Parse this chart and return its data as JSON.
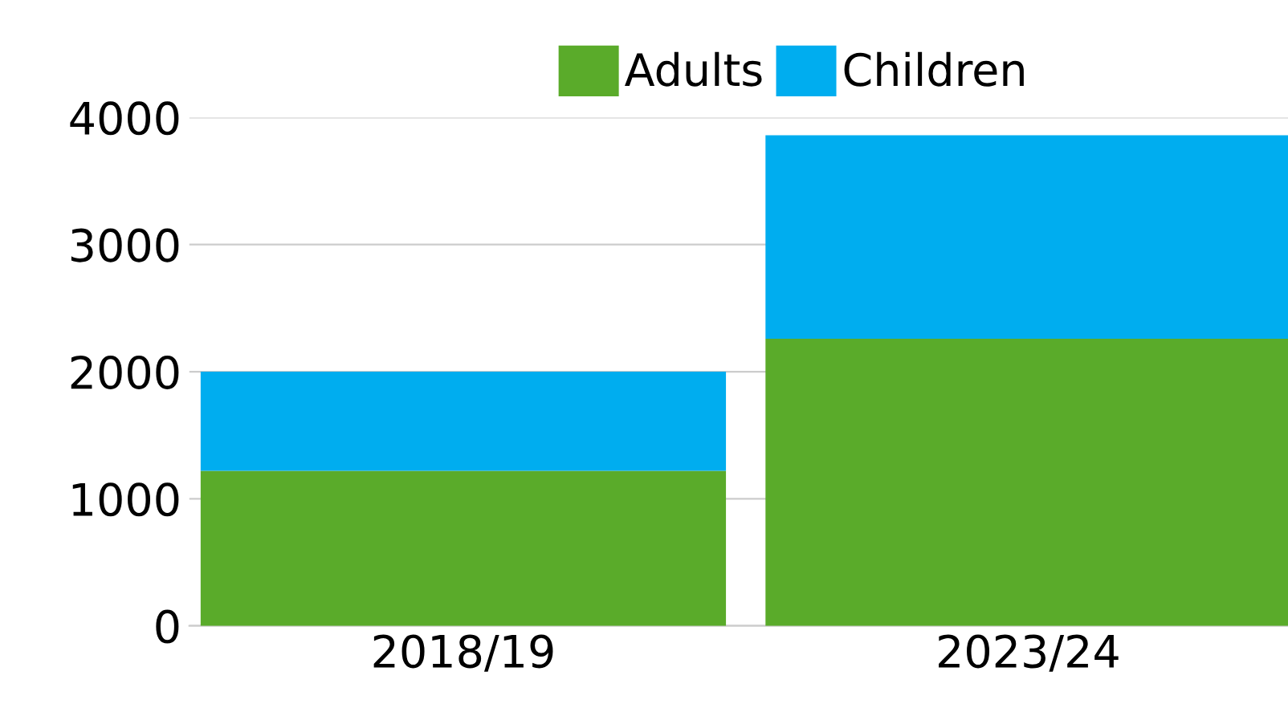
{
  "chart_data": {
    "type": "bar",
    "stacked": true,
    "categories": [
      "2018/19",
      "2023/24"
    ],
    "series": [
      {
        "name": "Adults",
        "color": "#5aab2a",
        "values": [
          1220,
          2260
        ]
      },
      {
        "name": "Children",
        "color": "#00adef",
        "values": [
          780,
          1600
        ]
      }
    ],
    "ylim": [
      0,
      4000
    ],
    "yticks": [
      0,
      1000,
      2000,
      3000,
      4000
    ],
    "grid": "y",
    "legend": "top"
  }
}
